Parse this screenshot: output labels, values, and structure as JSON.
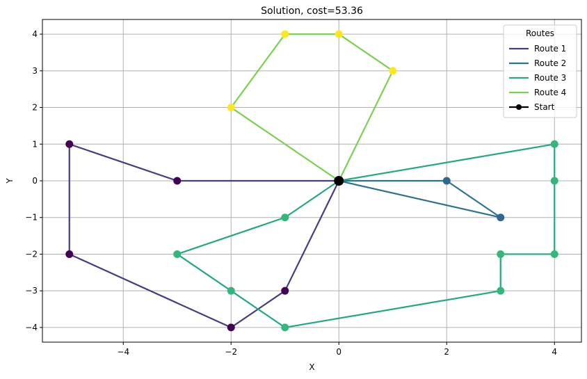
{
  "chart_data": {
    "type": "line",
    "title": "Solution, cost=53.36",
    "xlabel": "X",
    "ylabel": "Y",
    "xlim": [
      -5.5,
      4.5
    ],
    "ylim": [
      -4.4,
      4.4
    ],
    "xticks": [
      -4,
      -2,
      0,
      2,
      4
    ],
    "yticks": [
      -4,
      -3,
      -2,
      -1,
      0,
      1,
      2,
      3,
      4
    ],
    "grid": true,
    "legend": {
      "title": "Routes",
      "placement": "top-right"
    },
    "start": {
      "name": "Start",
      "x": 0,
      "y": 0,
      "color": "#000000"
    },
    "series": [
      {
        "name": "Route 1",
        "line_color": "#433e85",
        "marker_color": "#440154",
        "points": [
          [
            0,
            0
          ],
          [
            -3,
            0
          ],
          [
            -5,
            1
          ],
          [
            -5,
            -2
          ],
          [
            -2,
            -4
          ],
          [
            -1,
            -3
          ],
          [
            0,
            0
          ]
        ]
      },
      {
        "name": "Route 2",
        "line_color": "#2c728e",
        "marker_color": "#31688e",
        "points": [
          [
            0,
            0
          ],
          [
            2,
            0
          ],
          [
            3,
            -1
          ],
          [
            0,
            0
          ]
        ]
      },
      {
        "name": "Route 3",
        "line_color": "#22a884",
        "marker_color": "#35b779",
        "points": [
          [
            0,
            0
          ],
          [
            4,
            1
          ],
          [
            4,
            0
          ],
          [
            4,
            -2
          ],
          [
            3,
            -2
          ],
          [
            3,
            -3
          ],
          [
            -1,
            -4
          ],
          [
            -2,
            -3
          ],
          [
            -3,
            -2
          ],
          [
            -1,
            -1
          ],
          [
            0,
            0
          ]
        ]
      },
      {
        "name": "Route 4",
        "line_color": "#7ad151",
        "marker_color": "#fde725",
        "points": [
          [
            0,
            0
          ],
          [
            1,
            3
          ],
          [
            0,
            4
          ],
          [
            -1,
            4
          ],
          [
            -2,
            2
          ],
          [
            0,
            0
          ]
        ]
      }
    ]
  }
}
